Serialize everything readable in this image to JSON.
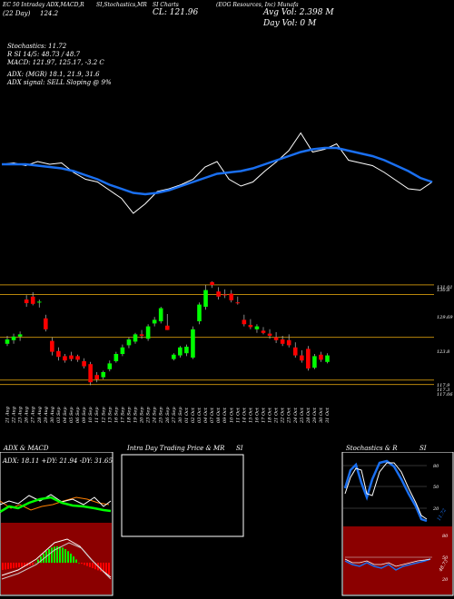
{
  "header": {
    "line1_left": "EC 50 Intraday ADX,MACD,R",
    "line1_mid1": "SI,Stochastics,MR",
    "line1_mid2": "SI Charts",
    "line1_right": "(EOG Resources, Inc) Munafa",
    "date": "(22 Day)",
    "val_1242": "124.2",
    "close": "CL: 121.96",
    "avg_vol": "Avg Vol: 2.398  M",
    "day_vol": "Day Vol: 0  M",
    "stochastics": "Stochastics: 11.72",
    "rsi": "R                         SI 14/5: 48.73 / 48.7",
    "macd": "MACD: 121.97, 125.17, -3.2  C",
    "adx": "ADX:                              (MGR) 18.1, 21.9, 31.6",
    "adx_signal": "ADX  signal: SELL  Sloping @ 9%"
  },
  "colors": {
    "bull": "#00ff00",
    "bear": "#ff0000",
    "ma_blue": "#1a6ff0",
    "level_line": "#b8860b",
    "red_panel": "#8b0000"
  },
  "chart_data": [
    {
      "type": "line",
      "name": "price-overlay",
      "series": [
        {
          "values": [
            126.1,
            126.2,
            126.0,
            126.3,
            126.1,
            126.2,
            125.5,
            125.0,
            124.8,
            124.2,
            123.6,
            122.5,
            123.2,
            124.1,
            124.3,
            124.6,
            125.0,
            125.9,
            126.3,
            125.0,
            124.5,
            124.8,
            125.6,
            126.3,
            127.1,
            128.4,
            127.0,
            127.2,
            127.6,
            126.4,
            126.2,
            126.0,
            125.5,
            124.9,
            124.3,
            124.2,
            124.8
          ]
        },
        {
          "values": [
            126.1,
            126.1,
            126.1,
            126.0,
            125.9,
            125.8,
            125.6,
            125.3,
            125.0,
            124.6,
            124.3,
            124.0,
            123.9,
            124.0,
            124.2,
            124.5,
            124.8,
            125.1,
            125.4,
            125.5,
            125.6,
            125.8,
            126.1,
            126.4,
            126.7,
            127.0,
            127.2,
            127.3,
            127.3,
            127.1,
            126.9,
            126.7,
            126.4,
            126.0,
            125.6,
            125.1,
            124.8
          ]
        }
      ]
    },
    {
      "type": "bar",
      "name": "candles",
      "x_labels": [
        "21 Aug",
        "22 Aug",
        "23 Aug",
        "26 Aug",
        "27 Aug",
        "28 Aug",
        "29 Aug",
        "30 Aug",
        "03 Sep",
        "04 Sep",
        "05 Sep",
        "06 Sep",
        "09 Sep",
        "10 Sep",
        "11 Sep",
        "12 Sep",
        "13 Sep",
        "16 Sep",
        "17 Sep",
        "18 Sep",
        "19 Sep",
        "20 Sep",
        "23 Sep",
        "24 Sep",
        "25 Sep",
        "26 Sep",
        "27 Sep",
        "30 Sep",
        "01 Oct",
        "02 Oct",
        "03 Oct",
        "04 Oct",
        "07 Oct",
        "08 Oct",
        "09 Oct",
        "10 Oct",
        "11 Oct",
        "14 Oct",
        "15 Oct",
        "16 Oct",
        "17 Oct",
        "18 Oct",
        "21 Oct",
        "22 Oct",
        "23 Oct",
        "24 Oct",
        "25 Oct",
        "28 Oct",
        "29 Oct",
        "30 Oct",
        "31 Oct"
      ],
      "levels": [
        "131.01",
        "130.8",
        "129.69",
        "123.8",
        "117.9",
        "117.3",
        "117.06"
      ],
      "ylim": [
        116.5,
        131.5
      ]
    },
    {
      "type": "line",
      "name": "adx-macd",
      "title": "ADX  & MACD",
      "subtitle": "ADX: 18.11  +DY: 21.94  -DY: 31.65"
    },
    {
      "type": "bar",
      "name": "mrsi",
      "title": "Intra  Day Trading Price  & MR",
      "title2": "SI"
    },
    {
      "type": "line",
      "name": "stochastics",
      "title": "Stochastics & R",
      "title2": "SI",
      "y_labels": [
        "80",
        "50",
        "20"
      ],
      "value_label": "11.72",
      "rsi_labels": [
        "80",
        "50",
        "20"
      ],
      "rsi_value": "48.73"
    }
  ]
}
